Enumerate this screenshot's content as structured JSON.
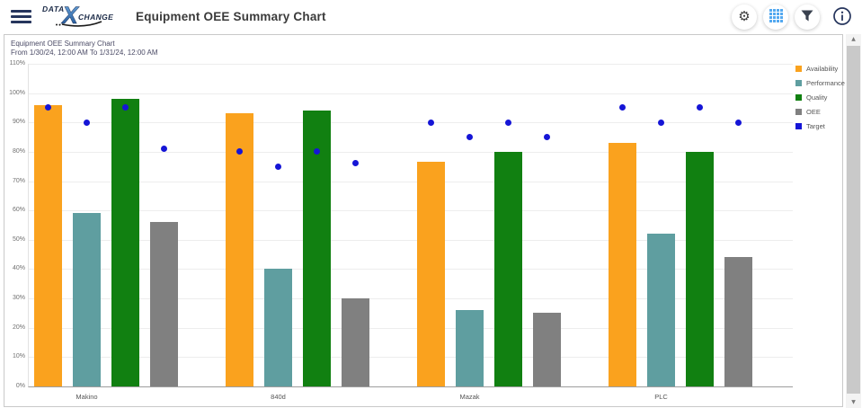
{
  "app_bar": {
    "title": "Equipment OEE Summary Chart",
    "logo": {
      "part1": "DATA",
      "x": "X",
      "part2": "CHANGE"
    }
  },
  "icons": {
    "gear": "⚙",
    "scroll_up": "▲",
    "scroll_down": "▼"
  },
  "card": {
    "title": "Equipment OEE Summary Chart",
    "subtitle": "From 1/30/24, 12:00 AM To 1/31/24, 12:00 AM"
  },
  "colors": {
    "availability": "#FAA21E",
    "performance": "#5F9EA0",
    "quality": "#118011",
    "oee": "#808080",
    "target": "#1515D6",
    "accent_blue": "#54A9F0",
    "navy": "#26355d"
  },
  "chart_data": {
    "type": "bar",
    "title": "Equipment OEE Summary Chart",
    "subtitle": "From 1/30/24, 12:00 AM To 1/31/24, 12:00 AM",
    "categories": [
      "Makino",
      "840d",
      "Mazak",
      "PLC"
    ],
    "series": [
      {
        "name": "Availability",
        "color": "#FAA21E",
        "values": [
          96,
          93,
          76.5,
          83
        ]
      },
      {
        "name": "Performance",
        "color": "#5F9EA0",
        "values": [
          59,
          40,
          26,
          52
        ]
      },
      {
        "name": "Quality",
        "color": "#118011",
        "values": [
          98,
          94,
          80,
          80
        ]
      },
      {
        "name": "OEE",
        "color": "#808080",
        "values": [
          56,
          30,
          25,
          44
        ]
      }
    ],
    "target_series": {
      "name": "Target",
      "color": "#1515D6",
      "marker": "dot",
      "values_by_category": [
        [
          95,
          90,
          95,
          81
        ],
        [
          80,
          75,
          80,
          76
        ],
        [
          90,
          85,
          90,
          85
        ],
        [
          95,
          90,
          95,
          90
        ]
      ]
    },
    "y_ticks": [
      "110%",
      "100%",
      "90%",
      "80%",
      "70%",
      "60%",
      "50%",
      "40%",
      "30%",
      "20%",
      "10%",
      "0%"
    ],
    "ylim": [
      0,
      110
    ],
    "grid": true,
    "legend_position": "top-right",
    "legend_entries": [
      "Availability",
      "Performance",
      "Quality",
      "OEE",
      "Target"
    ]
  }
}
